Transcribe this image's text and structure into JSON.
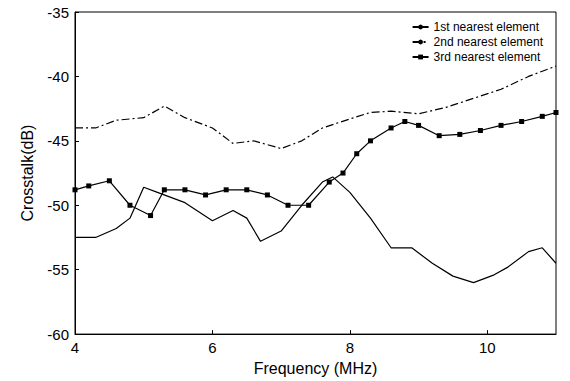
{
  "chart_data": {
    "type": "line",
    "x_label": "Frequency (MHz)",
    "y_label": "Crosstalk(dB)",
    "xlim": [
      4,
      11
    ],
    "xticks": [
      4,
      6,
      8,
      10
    ],
    "ylim": [
      -60,
      -35
    ],
    "yticks": [
      -60,
      -55,
      -50,
      -45,
      -40,
      -35
    ],
    "grid": false,
    "legend": "upper right",
    "series": [
      {
        "name": "1st nearest element",
        "color": "#000000",
        "line_style": "solid",
        "marker": "none",
        "x": [
          4,
          4.3,
          4.6,
          4.8,
          5.0,
          5.2,
          5.6,
          6.0,
          6.3,
          6.5,
          6.7,
          7.0,
          7.3,
          7.6,
          7.75,
          8.0,
          8.3,
          8.6,
          8.9,
          9.2,
          9.5,
          9.8,
          10.1,
          10.3,
          10.6,
          10.8,
          11.0
        ],
        "values": [
          -52.5,
          -52.5,
          -51.8,
          -51,
          -48.6,
          -49,
          -49.8,
          -51.2,
          -50.4,
          -51,
          -52.8,
          -52,
          -50,
          -48.2,
          -47.8,
          -49,
          -51,
          -53.3,
          -53.3,
          -54.5,
          -55.5,
          -56,
          -55.4,
          -54.8,
          -53.6,
          -53.3,
          -54.5
        ]
      },
      {
        "name": "2nd nearest element",
        "color": "#000000",
        "line_style": "dashdot",
        "marker": "none",
        "x": [
          4,
          4.3,
          4.6,
          5.0,
          5.3,
          5.6,
          6.0,
          6.3,
          6.6,
          7.0,
          7.3,
          7.6,
          8.0,
          8.3,
          8.6,
          9.0,
          9.4,
          9.8,
          10.2,
          10.6,
          11.0
        ],
        "values": [
          -44,
          -44,
          -43.4,
          -43.2,
          -42.3,
          -43.2,
          -44,
          -45.2,
          -45,
          -45.6,
          -45,
          -44,
          -43.3,
          -42.8,
          -42.7,
          -42.9,
          -42.4,
          -41.7,
          -41,
          -40,
          -39.2
        ]
      },
      {
        "name": "3rd nearest element",
        "color": "#000000",
        "line_style": "solid",
        "marker": "square",
        "x": [
          4,
          4.2,
          4.5,
          4.8,
          5.1,
          5.3,
          5.6,
          5.9,
          6.2,
          6.5,
          6.8,
          7.1,
          7.4,
          7.7,
          7.9,
          8.1,
          8.3,
          8.6,
          8.8,
          9.0,
          9.3,
          9.6,
          9.9,
          10.2,
          10.5,
          10.8,
          11.0
        ],
        "values": [
          -48.8,
          -48.5,
          -48.1,
          -50,
          -50.8,
          -48.8,
          -48.8,
          -49.2,
          -48.8,
          -48.8,
          -49.2,
          -50,
          -50,
          -48.2,
          -47.5,
          -46,
          -45,
          -44,
          -43.5,
          -43.8,
          -44.6,
          -44.5,
          -44.2,
          -43.8,
          -43.5,
          -43.1,
          -42.8
        ]
      }
    ]
  }
}
